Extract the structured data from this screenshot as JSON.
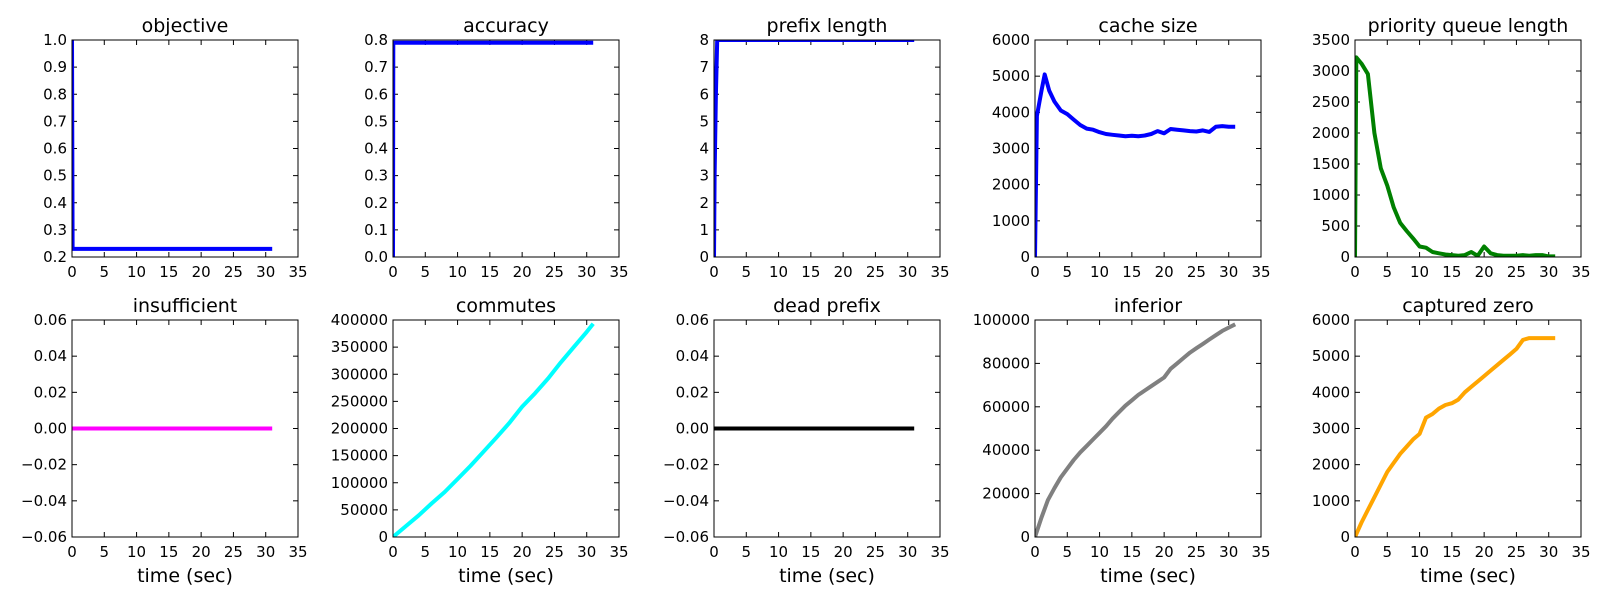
{
  "chart_data": [
    {
      "type": "line",
      "title": "objective",
      "xlabel": "",
      "xlim": [
        0,
        35
      ],
      "ylim": [
        0.2,
        1.0
      ],
      "xticks": [
        "0",
        "5",
        "10",
        "15",
        "20",
        "25",
        "30",
        "35"
      ],
      "yticks": [
        "0.2",
        "0.3",
        "0.4",
        "0.5",
        "0.6",
        "0.7",
        "0.8",
        "0.9",
        "1.0"
      ],
      "series": [
        {
          "color": "#0000ff",
          "x": [
            0,
            0.1,
            31
          ],
          "y": [
            1.0,
            0.23,
            0.23
          ]
        }
      ]
    },
    {
      "type": "line",
      "title": "accuracy",
      "xlabel": "",
      "xlim": [
        0,
        35
      ],
      "ylim": [
        0.0,
        0.8
      ],
      "xticks": [
        "0",
        "5",
        "10",
        "15",
        "20",
        "25",
        "30",
        "35"
      ],
      "yticks": [
        "0.0",
        "0.1",
        "0.2",
        "0.3",
        "0.4",
        "0.5",
        "0.6",
        "0.7",
        "0.8"
      ],
      "series": [
        {
          "color": "#0000ff",
          "x": [
            0,
            0.05,
            31
          ],
          "y": [
            0.0,
            0.79,
            0.79
          ]
        }
      ]
    },
    {
      "type": "line",
      "title": "prefix length",
      "xlabel": "",
      "xlim": [
        0,
        35
      ],
      "ylim": [
        0,
        8
      ],
      "xticks": [
        "0",
        "5",
        "10",
        "15",
        "20",
        "25",
        "30",
        "35"
      ],
      "yticks": [
        "0",
        "1",
        "2",
        "3",
        "4",
        "5",
        "6",
        "7",
        "8"
      ],
      "series": [
        {
          "color": "#0000ff",
          "x": [
            0,
            0.1,
            0.3,
            0.5,
            31
          ],
          "y": [
            0,
            3,
            6,
            8,
            8
          ]
        }
      ]
    },
    {
      "type": "line",
      "title": "cache size",
      "xlabel": "",
      "xlim": [
        0,
        35
      ],
      "ylim": [
        0,
        6000
      ],
      "xticks": [
        "0",
        "5",
        "10",
        "15",
        "20",
        "25",
        "30",
        "35"
      ],
      "yticks": [
        "0",
        "1000",
        "2000",
        "3000",
        "4000",
        "5000",
        "6000"
      ],
      "series": [
        {
          "color": "#0000ff",
          "x": [
            0,
            0.3,
            1,
            1.5,
            2.2,
            3,
            4,
            5,
            6,
            7,
            8,
            9,
            10,
            11,
            12,
            13,
            14,
            15,
            16,
            17,
            18,
            19,
            20,
            21,
            22,
            23,
            24,
            25,
            26,
            27,
            28,
            29,
            30,
            31
          ],
          "y": [
            0,
            3900,
            4600,
            5050,
            4600,
            4300,
            4050,
            3950,
            3800,
            3650,
            3550,
            3520,
            3450,
            3400,
            3380,
            3360,
            3340,
            3350,
            3340,
            3360,
            3400,
            3480,
            3420,
            3540,
            3520,
            3500,
            3480,
            3470,
            3500,
            3460,
            3600,
            3620,
            3600,
            3600
          ]
        }
      ]
    },
    {
      "type": "line",
      "title": "priority queue length",
      "xlabel": "",
      "xlim": [
        0,
        35
      ],
      "ylim": [
        0,
        3500
      ],
      "xticks": [
        "0",
        "5",
        "10",
        "15",
        "20",
        "25",
        "30",
        "35"
      ],
      "yticks": [
        "0",
        "500",
        "1000",
        "1500",
        "2000",
        "2500",
        "3000",
        "3500"
      ],
      "series": [
        {
          "color": "#008000",
          "x": [
            0,
            0.2,
            1,
            2,
            3,
            4,
            5,
            6,
            7,
            8,
            9,
            10,
            11,
            12,
            13,
            14,
            15,
            16,
            17,
            18,
            19,
            20,
            21,
            22,
            23,
            24,
            25,
            26,
            27,
            28,
            29,
            30,
            31
          ],
          "y": [
            0,
            3220,
            3120,
            2950,
            2000,
            1430,
            1150,
            800,
            550,
            420,
            300,
            170,
            150,
            80,
            60,
            40,
            30,
            20,
            30,
            80,
            20,
            170,
            60,
            30,
            20,
            20,
            20,
            30,
            20,
            30,
            30,
            10,
            10
          ]
        }
      ]
    },
    {
      "type": "line",
      "title": "insufficient",
      "xlabel": "time (sec)",
      "xlim": [
        0,
        35
      ],
      "ylim": [
        -0.06,
        0.06
      ],
      "xticks": [
        "0",
        "5",
        "10",
        "15",
        "20",
        "25",
        "30",
        "35"
      ],
      "yticks": [
        "−0.06",
        "−0.04",
        "−0.02",
        "0.00",
        "0.02",
        "0.04",
        "0.06"
      ],
      "series": [
        {
          "color": "#ff00ff",
          "x": [
            0,
            31
          ],
          "y": [
            0,
            0
          ]
        }
      ]
    },
    {
      "type": "line",
      "title": "commutes",
      "xlabel": "time (sec)",
      "xlim": [
        0,
        35
      ],
      "ylim": [
        0,
        400000
      ],
      "xticks": [
        "0",
        "5",
        "10",
        "15",
        "20",
        "25",
        "30",
        "35"
      ],
      "yticks": [
        "0",
        "50000",
        "100000",
        "150000",
        "200000",
        "250000",
        "300000",
        "350000",
        "400000"
      ],
      "series": [
        {
          "color": "#00ffff",
          "x": [
            0,
            2,
            4,
            6,
            8,
            10,
            12,
            14,
            16,
            18,
            20,
            22,
            24,
            26,
            28,
            30,
            31
          ],
          "y": [
            0,
            20000,
            40000,
            62000,
            83000,
            107000,
            131000,
            157000,
            183000,
            210000,
            240000,
            265000,
            292000,
            322000,
            350000,
            378000,
            393000
          ]
        }
      ]
    },
    {
      "type": "line",
      "title": "dead prefix",
      "xlabel": "time (sec)",
      "xlim": [
        0,
        35
      ],
      "ylim": [
        -0.06,
        0.06
      ],
      "xticks": [
        "0",
        "5",
        "10",
        "15",
        "20",
        "25",
        "30",
        "35"
      ],
      "yticks": [
        "−0.06",
        "−0.04",
        "−0.02",
        "0.00",
        "0.02",
        "0.04",
        "0.06"
      ],
      "series": [
        {
          "color": "#000000",
          "x": [
            0,
            31
          ],
          "y": [
            0,
            0
          ]
        }
      ]
    },
    {
      "type": "line",
      "title": "inferior",
      "xlabel": "time (sec)",
      "xlim": [
        0,
        35
      ],
      "ylim": [
        0,
        100000
      ],
      "xticks": [
        "0",
        "5",
        "10",
        "15",
        "20",
        "25",
        "30",
        "35"
      ],
      "yticks": [
        "0",
        "20000",
        "40000",
        "60000",
        "80000",
        "100000"
      ],
      "series": [
        {
          "color": "#808080",
          "x": [
            0,
            1,
            2,
            3,
            4,
            5,
            6,
            7,
            8,
            9,
            10,
            11,
            12,
            13,
            14,
            15,
            16,
            17,
            18,
            19,
            20,
            21,
            22,
            23,
            24,
            25,
            26,
            27,
            28,
            29,
            30,
            31
          ],
          "y": [
            0,
            9000,
            17000,
            22500,
            27500,
            31500,
            35500,
            39000,
            42000,
            45000,
            48000,
            51000,
            54500,
            57500,
            60500,
            63000,
            65500,
            67500,
            69500,
            71500,
            73500,
            77500,
            80000,
            82500,
            85000,
            87000,
            89000,
            91000,
            93000,
            95000,
            96500,
            98000
          ]
        }
      ]
    },
    {
      "type": "line",
      "title": "captured zero",
      "xlabel": "time (sec)",
      "xlim": [
        0,
        35
      ],
      "ylim": [
        0,
        6000
      ],
      "xticks": [
        "0",
        "5",
        "10",
        "15",
        "20",
        "25",
        "30",
        "35"
      ],
      "yticks": [
        "0",
        "1000",
        "2000",
        "3000",
        "4000",
        "5000",
        "6000"
      ],
      "series": [
        {
          "color": "#ffa500",
          "x": [
            0,
            1,
            2,
            3,
            4,
            5,
            6,
            7,
            8,
            9,
            10,
            11,
            12,
            13,
            14,
            15,
            16,
            17,
            18,
            19,
            20,
            21,
            22,
            23,
            24,
            25,
            26,
            27,
            28,
            29,
            30,
            31
          ],
          "y": [
            0,
            400,
            750,
            1100,
            1450,
            1800,
            2050,
            2300,
            2500,
            2700,
            2850,
            3300,
            3400,
            3550,
            3650,
            3700,
            3800,
            4000,
            4150,
            4300,
            4450,
            4600,
            4750,
            4900,
            5050,
            5200,
            5450,
            5500,
            5500,
            5500,
            5500,
            5500
          ]
        }
      ]
    }
  ]
}
